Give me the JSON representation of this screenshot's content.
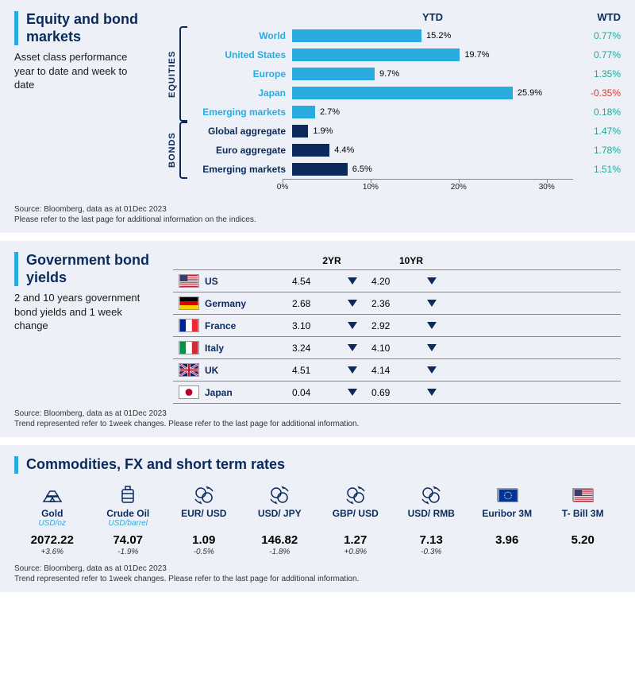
{
  "colors": {
    "equities_bar": "#29aae1",
    "bonds_bar": "#0a2a5e",
    "equities_label": "#29aae1",
    "bonds_label": "#0a2a5e",
    "wtd_pos": "#1aa89a",
    "wtd_neg": "#d63b2f",
    "panel_bg": "#edf1f7",
    "title_color": "#0a2a5e"
  },
  "panel1": {
    "title": "Equity and bond markets",
    "subtitle": "Asset class performance year to date and week to date",
    "ytd_header": "YTD",
    "wtd_header": "WTD",
    "xmax": 33,
    "ticks": [
      {
        "v": 0,
        "label": "0%"
      },
      {
        "v": 10,
        "label": "10%"
      },
      {
        "v": 20,
        "label": "20%"
      },
      {
        "v": 30,
        "label": "30%"
      }
    ],
    "groups": [
      {
        "group_label": "EQUITIES",
        "label_color_key": "equities_label",
        "bar_color_key": "equities_bar",
        "rows": [
          {
            "label": "World",
            "ytd": 15.2,
            "ytd_label": "15.2%",
            "wtd": "0.77%",
            "wtd_sign": "pos"
          },
          {
            "label": "United States",
            "ytd": 19.7,
            "ytd_label": "19.7%",
            "wtd": "0.77%",
            "wtd_sign": "pos"
          },
          {
            "label": "Europe",
            "ytd": 9.7,
            "ytd_label": "9.7%",
            "wtd": "1.35%",
            "wtd_sign": "pos"
          },
          {
            "label": "Japan",
            "ytd": 25.9,
            "ytd_label": "25.9%",
            "wtd": "-0.35%",
            "wtd_sign": "neg"
          },
          {
            "label": "Emerging  markets",
            "ytd": 2.7,
            "ytd_label": "2.7%",
            "wtd": "0.18%",
            "wtd_sign": "pos"
          }
        ]
      },
      {
        "group_label": "BONDS",
        "label_color_key": "bonds_label",
        "bar_color_key": "bonds_bar",
        "rows": [
          {
            "label": "Global aggregate",
            "ytd": 1.9,
            "ytd_label": "1.9%",
            "wtd": "1.47%",
            "wtd_sign": "pos"
          },
          {
            "label": "Euro aggregate",
            "ytd": 4.4,
            "ytd_label": "4.4%",
            "wtd": "1.78%",
            "wtd_sign": "pos"
          },
          {
            "label": "Emerging  markets",
            "ytd": 6.5,
            "ytd_label": "6.5%",
            "wtd": "1.51%",
            "wtd_sign": "pos"
          }
        ]
      }
    ],
    "source_l1": "Source: Bloomberg, data as at  01Dec 2023",
    "source_l2": "Please refer to the last page for additional information on the indices."
  },
  "panel2": {
    "title": "Government bond yields",
    "subtitle": "2 and 10 years government bond yields and 1 week change",
    "col_2yr": "2YR",
    "col_10yr": "10YR",
    "rows": [
      {
        "flag": "us",
        "name": "US",
        "y2": "4.54",
        "d2": "down",
        "y10": "4.20",
        "d10": "down"
      },
      {
        "flag": "de",
        "name": "Germany",
        "y2": "2.68",
        "d2": "down",
        "y10": "2.36",
        "d10": "down"
      },
      {
        "flag": "fr",
        "name": "France",
        "y2": "3.10",
        "d2": "down",
        "y10": "2.92",
        "d10": "down"
      },
      {
        "flag": "it",
        "name": "Italy",
        "y2": "3.24",
        "d2": "down",
        "y10": "4.10",
        "d10": "down"
      },
      {
        "flag": "uk",
        "name": "UK",
        "y2": "4.51",
        "d2": "down",
        "y10": "4.14",
        "d10": "down"
      },
      {
        "flag": "jp",
        "name": "Japan",
        "y2": "0.04",
        "d2": "down",
        "y10": "0.69",
        "d10": "down"
      }
    ],
    "source_l1": "Source: Bloomberg, data as at  01Dec 2023",
    "source_l2": "Trend represented refer to 1week changes. Please refer to the last page for additional information."
  },
  "panel3": {
    "title": "Commodities, FX and short term rates",
    "items": [
      {
        "icon": "gold",
        "name": "Gold",
        "unit": "USD/oz",
        "value": "2072.22",
        "change": "+3.6%"
      },
      {
        "icon": "oil",
        "name": "Crude Oil",
        "unit": "USD/barrel",
        "value": "74.07",
        "change": "-1.9%"
      },
      {
        "icon": "fx",
        "name": "EUR/ USD",
        "unit": "",
        "value": "1.09",
        "change": "-0.5%"
      },
      {
        "icon": "fx",
        "name": "USD/ JPY",
        "unit": "",
        "value": "146.82",
        "change": "-1.8%"
      },
      {
        "icon": "fx",
        "name": "GBP/ USD",
        "unit": "",
        "value": "1.27",
        "change": "+0.8%"
      },
      {
        "icon": "fx",
        "name": "USD/ RMB",
        "unit": "",
        "value": "7.13",
        "change": "-0.3%"
      },
      {
        "icon": "flag-eu",
        "name": "Euribor 3M",
        "unit": "",
        "value": "3.96",
        "change": ""
      },
      {
        "icon": "flag-us",
        "name": "T- Bill 3M",
        "unit": "",
        "value": "5.20",
        "change": ""
      }
    ],
    "source_l1": "Source: Bloomberg, data as at  01Dec 2023",
    "source_l2": "Trend represented refer to 1week changes. Please refer to the last page for additional information."
  }
}
